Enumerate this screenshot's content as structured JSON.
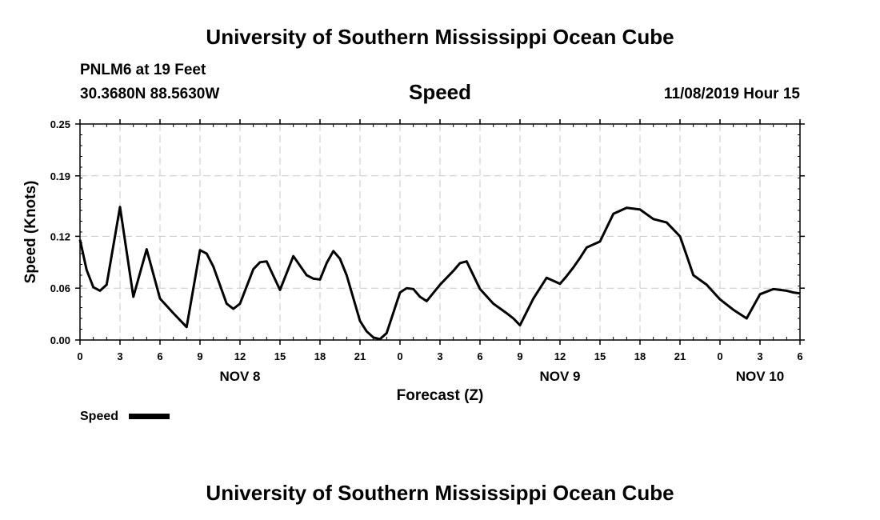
{
  "header": {
    "title_top": "University of Southern Mississippi Ocean Cube",
    "station": "PNLM6 at 19 Feet",
    "coords": "30.3680N 88.5630W",
    "variable": "Speed",
    "datetime": "11/08/2019 Hour 15"
  },
  "footer": {
    "title_bottom": "University of Southern Mississippi Ocean Cube"
  },
  "legend": {
    "label": "Speed"
  },
  "chart_data": {
    "type": "line",
    "title": "Speed",
    "xlabel": "Forecast (Z)",
    "ylabel": "Speed (Knots)",
    "xlim": [
      0,
      54
    ],
    "ylim": [
      0,
      0.25
    ],
    "y_ticks": [
      0.0,
      0.06,
      0.12,
      0.19,
      0.25
    ],
    "y_tick_labels": [
      "0.00",
      "0.06",
      "0.12",
      "0.19",
      "0.25"
    ],
    "x_ticks": [
      0,
      3,
      6,
      9,
      12,
      15,
      18,
      21,
      24,
      27,
      30,
      33,
      36,
      39,
      42,
      45,
      48,
      51,
      54
    ],
    "x_tick_labels": [
      "0",
      "3",
      "6",
      "9",
      "12",
      "15",
      "18",
      "21",
      "0",
      "3",
      "6",
      "9",
      "12",
      "15",
      "18",
      "21",
      "0",
      "3",
      "6"
    ],
    "date_labels": [
      {
        "x": 12,
        "label": "NOV 8"
      },
      {
        "x": 36,
        "label": "NOV 9"
      },
      {
        "x": 51,
        "label": "NOV 10"
      }
    ],
    "grid": true,
    "series": [
      {
        "name": "Speed",
        "color": "#000000",
        "x": [
          0,
          0.5,
          1,
          1.5,
          2,
          3,
          4,
          5,
          6,
          7,
          8,
          9,
          9.5,
          10,
          11,
          11.5,
          12,
          13,
          13.5,
          14,
          15,
          16,
          17,
          17.5,
          18,
          18.5,
          19,
          19.5,
          20,
          21,
          21.5,
          22,
          22.5,
          23,
          24,
          24.5,
          25,
          25.5,
          26,
          27,
          28,
          28.5,
          29,
          30,
          31,
          32,
          32.5,
          33,
          34,
          35,
          36,
          36.5,
          37,
          37.5,
          38,
          39,
          40,
          41,
          42,
          43,
          44,
          45,
          45.5,
          46,
          47,
          48,
          49,
          50,
          51,
          52,
          52.5,
          53,
          53.5,
          54
        ],
        "values": [
          0.116,
          0.081,
          0.061,
          0.057,
          0.064,
          0.154,
          0.05,
          0.105,
          0.048,
          0.031,
          0.015,
          0.104,
          0.1,
          0.085,
          0.042,
          0.036,
          0.042,
          0.082,
          0.09,
          0.091,
          0.058,
          0.097,
          0.075,
          0.071,
          0.07,
          0.089,
          0.103,
          0.094,
          0.075,
          0.022,
          0.01,
          0.003,
          0.001,
          0.008,
          0.055,
          0.06,
          0.059,
          0.05,
          0.045,
          0.064,
          0.08,
          0.089,
          0.091,
          0.059,
          0.042,
          0.031,
          0.025,
          0.017,
          0.048,
          0.072,
          0.065,
          0.074,
          0.084,
          0.095,
          0.107,
          0.114,
          0.146,
          0.153,
          0.151,
          0.14,
          0.136,
          0.12,
          0.098,
          0.075,
          0.064,
          0.047,
          0.035,
          0.025,
          0.053,
          0.059,
          0.058,
          0.057,
          0.055,
          0.054
        ]
      }
    ]
  }
}
